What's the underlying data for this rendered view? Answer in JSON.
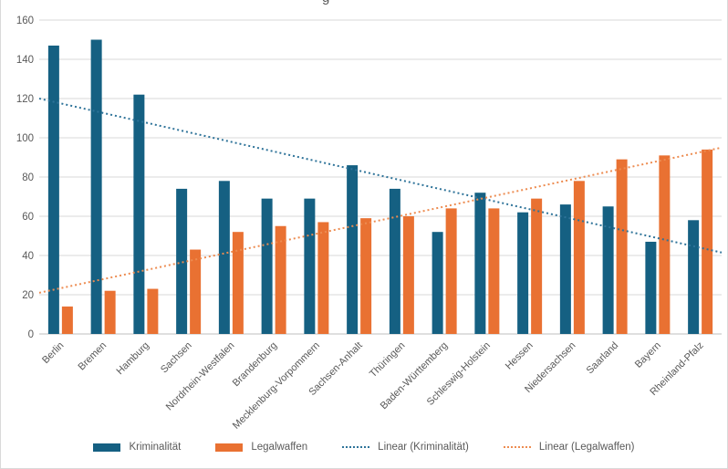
{
  "title_fragment": "g",
  "chart_data": {
    "type": "bar",
    "categories": [
      "Berlin",
      "Bremen",
      "Hamburg",
      "Sachsen",
      "Nordrhein-Westfalen",
      "Brandenburg",
      "Mecklenburg-Vorpommern",
      "Sachsen-Anhalt",
      "Thüringen",
      "Baden-Württemberg",
      "Schleswig-Holstein",
      "Hessen",
      "Niedersachsen",
      "Saarland",
      "Bayern",
      "Rheinland-Pfalz"
    ],
    "series": [
      {
        "name": "Kriminalität",
        "color": "#156082",
        "values": [
          147,
          150,
          122,
          74,
          78,
          69,
          69,
          86,
          74,
          52,
          72,
          62,
          66,
          65,
          47,
          58
        ]
      },
      {
        "name": "Legalwaffen",
        "color": "#E97132",
        "values": [
          14,
          22,
          23,
          43,
          52,
          55,
          57,
          59,
          60,
          64,
          64,
          69,
          78,
          89,
          91,
          94
        ]
      }
    ],
    "trendlines": [
      {
        "name": "Linear (Kriminalität)",
        "color": "#2E7399",
        "start_value": 120,
        "end_value": 41.5
      },
      {
        "name": "Linear (Legalwaffen)",
        "color": "#ED8C51",
        "start_value": 21,
        "end_value": 95
      }
    ],
    "ylim": [
      0,
      160
    ],
    "yticks": [
      "0",
      "20",
      "40",
      "60",
      "80",
      "100",
      "120",
      "140",
      "160"
    ],
    "grid": true,
    "legend_position": "bottom",
    "colors": {
      "gridline": "#d9d9d9",
      "axis_line": "#bfbfbf",
      "tick_text": "#595959"
    },
    "legend_items": [
      {
        "label": "Kriminalität",
        "swatch": "bar",
        "color": "#156082"
      },
      {
        "label": "Legalwaffen",
        "swatch": "bar",
        "color": "#E97132"
      },
      {
        "label": "Linear (Kriminalität)",
        "swatch": "dotted",
        "color": "#2E7399"
      },
      {
        "label": "Linear (Legalwaffen)",
        "swatch": "dotted",
        "color": "#ED8C51"
      }
    ]
  }
}
